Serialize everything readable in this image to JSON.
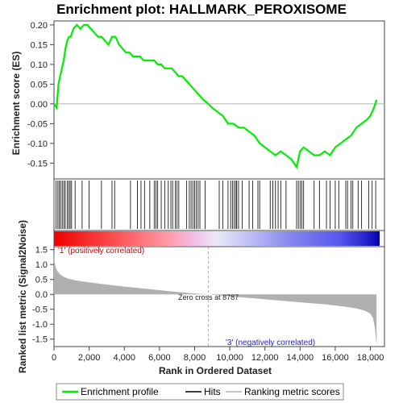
{
  "title": "Enrichment plot: HALLMARK_PEROXISOME",
  "colors": {
    "enrichment_line": "#00ee00",
    "hits": "#000000",
    "metric_fill": "#b0b0b0",
    "positive_band": "#ff0000",
    "negative_band": "#0000ff",
    "positive_text": "#cc0000",
    "negative_text": "#2222cc"
  },
  "chart_data": [
    {
      "type": "line",
      "name": "enrichment-score-panel",
      "ylabel": "Enrichment score (ES)",
      "ylim": [
        -0.19,
        0.21
      ],
      "yticks": [
        -0.15,
        -0.1,
        -0.05,
        0.0,
        0.05,
        0.1,
        0.15,
        0.2
      ],
      "ytick_labels": [
        "-0.15",
        "-0.10",
        "-0.05",
        "0.00",
        "0.05",
        "0.10",
        "0.15",
        "0.20"
      ],
      "xlim": [
        0,
        18800
      ],
      "series": [
        {
          "name": "Enrichment profile",
          "x": [
            0,
            150,
            250,
            350,
            450,
            550,
            650,
            750,
            850,
            950,
            1100,
            1300,
            1500,
            1700,
            1900,
            2100,
            2300,
            2500,
            2700,
            2900,
            3100,
            3300,
            3500,
            3700,
            3900,
            4100,
            4300,
            4500,
            4700,
            4900,
            5100,
            5300,
            5500,
            5700,
            5900,
            6100,
            6300,
            6500,
            6700,
            6900,
            7100,
            7300,
            7500,
            7700,
            7900,
            8100,
            8300,
            8500,
            8787,
            9000,
            9300,
            9600,
            9900,
            10200,
            10500,
            10800,
            11100,
            11400,
            11700,
            12000,
            12300,
            12600,
            12900,
            13200,
            13500,
            13800,
            14000,
            14200,
            14500,
            14800,
            15100,
            15400,
            15700,
            16000,
            16300,
            16600,
            16900,
            17200,
            17500,
            17800,
            18000,
            18200,
            18350
          ],
          "y": [
            0.0,
            -0.01,
            0.05,
            0.07,
            0.09,
            0.11,
            0.14,
            0.16,
            0.17,
            0.17,
            0.19,
            0.2,
            0.19,
            0.2,
            0.2,
            0.19,
            0.18,
            0.17,
            0.17,
            0.16,
            0.15,
            0.17,
            0.17,
            0.15,
            0.14,
            0.13,
            0.13,
            0.12,
            0.12,
            0.12,
            0.11,
            0.11,
            0.11,
            0.11,
            0.1,
            0.1,
            0.09,
            0.09,
            0.09,
            0.08,
            0.07,
            0.07,
            0.06,
            0.05,
            0.04,
            0.03,
            0.02,
            0.01,
            0.0,
            -0.01,
            -0.02,
            -0.03,
            -0.05,
            -0.05,
            -0.06,
            -0.06,
            -0.07,
            -0.08,
            -0.1,
            -0.11,
            -0.12,
            -0.13,
            -0.12,
            -0.13,
            -0.14,
            -0.16,
            -0.12,
            -0.11,
            -0.12,
            -0.13,
            -0.13,
            -0.12,
            -0.13,
            -0.11,
            -0.1,
            -0.09,
            -0.08,
            -0.06,
            -0.05,
            -0.04,
            -0.03,
            -0.01,
            0.01
          ]
        }
      ]
    },
    {
      "type": "line",
      "name": "ranked-metric-panel",
      "ylabel": "Ranked list metric (Signal2Noise)",
      "xlabel": "Rank in Ordered Dataset",
      "ylim": [
        -1.75,
        1.6
      ],
      "yticks": [
        -1.5,
        -1.0,
        -0.5,
        0.0,
        0.5,
        1.0,
        1.5
      ],
      "ytick_labels": [
        "-1.5",
        "-1.0",
        "-0.5",
        "0.0",
        "0.5",
        "1.0",
        "1.5"
      ],
      "xlim": [
        0,
        18800
      ],
      "xticks": [
        0,
        2000,
        4000,
        6000,
        8000,
        10000,
        12000,
        14000,
        16000,
        18000
      ],
      "xtick_labels": [
        "0",
        "2,000",
        "4,000",
        "6,000",
        "8,000",
        "10,000",
        "12,000",
        "14,000",
        "16,000",
        "18,000"
      ],
      "series": [
        {
          "name": "Ranking metric scores",
          "x": [
            0,
            30,
            80,
            150,
            300,
            500,
            800,
            1200,
            2000,
            3000,
            4000,
            5000,
            6000,
            7000,
            8000,
            8787,
            9500,
            10500,
            11500,
            12500,
            13500,
            14500,
            15500,
            16500,
            17200,
            17700,
            18000,
            18150,
            18250,
            18350
          ],
          "y": [
            1.5,
            1.1,
            0.95,
            0.82,
            0.7,
            0.6,
            0.53,
            0.47,
            0.4,
            0.33,
            0.26,
            0.2,
            0.14,
            0.08,
            0.03,
            0.0,
            -0.04,
            -0.09,
            -0.14,
            -0.19,
            -0.24,
            -0.29,
            -0.34,
            -0.41,
            -0.47,
            -0.55,
            -0.65,
            -0.8,
            -1.1,
            -1.7
          ]
        }
      ],
      "zero_cross_label": "Zero cross at 8787",
      "zero_cross": 8787,
      "positive_label": "'1' (positively correlated)",
      "negative_label": "'3' (negatively correlated)"
    }
  ],
  "hits": [
    120,
    220,
    300,
    380,
    470,
    560,
    640,
    760,
    840,
    920,
    1000,
    1200,
    1600,
    2000,
    2700,
    3300,
    3450,
    4350,
    4750,
    4950,
    5150,
    5450,
    5700,
    5800,
    5900,
    6100,
    6300,
    6500,
    6650,
    6750,
    6900,
    7000,
    7100,
    7550,
    7700,
    7800,
    7900,
    8000,
    8100,
    8200,
    8300,
    8600,
    9400,
    9600,
    9900,
    10050,
    10150,
    10250,
    10350,
    10400,
    10500,
    10700,
    11100,
    11300,
    11600,
    11700,
    12300,
    12450,
    12600,
    12750,
    12900,
    13200,
    13800,
    13900,
    14000,
    14100,
    14200,
    14800,
    15100,
    15500,
    15700,
    16000,
    16200,
    16600,
    16700,
    16900,
    17000,
    17300,
    17500,
    17900,
    18100,
    18300
  ],
  "legend": {
    "items": [
      "Enrichment profile",
      "Hits",
      "Ranking metric scores"
    ]
  }
}
